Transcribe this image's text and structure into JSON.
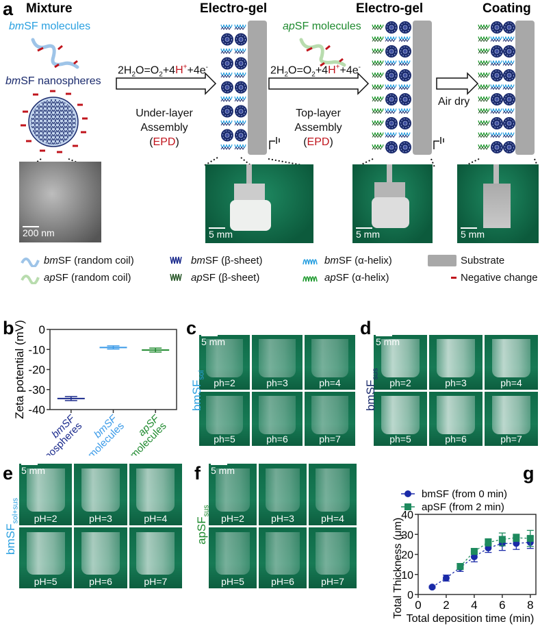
{
  "panel_a": {
    "label": "a",
    "mixture_title": "Mixture",
    "bm_molecules": "bmSF molecules",
    "bm_nanospheres": "bmSF nanospheres",
    "sem_scale": "200 nm",
    "reaction_1": "2H2O=O2+4H++4e-",
    "step1_line1": "Under-layer",
    "step1_line2": "Assembly",
    "step1_epd": "EPD",
    "electrogel_title_1": "Electro-gel",
    "ap_molecules": "apSF molecules",
    "reaction_2": "2H2O=O2+4H++4e-",
    "step2_line1": "Top-layer",
    "step2_line2": "Assembly",
    "step2_epd": "EPD",
    "electrogel_title_2": "Electro-gel",
    "step3": "Air dry",
    "coating_title": "Coating",
    "photo_scale": "5 mm",
    "colors": {
      "bm_light": "#2aa0e0",
      "bm_dark": "#1a2a6c",
      "ap": "#1e8a2e",
      "negative": "#c0141c",
      "substrate": "#a8a8a8"
    }
  },
  "legend": [
    {
      "prefix": "bm",
      "text": "SF (random coil)",
      "icon": "bm-random-coil-icon"
    },
    {
      "prefix": "bm",
      "text": "SF (β-sheet)",
      "icon": "bm-beta-sheet-icon"
    },
    {
      "prefix": "bm",
      "text": "SF (α-helix)",
      "icon": "bm-alpha-helix-icon"
    },
    {
      "prefix": "",
      "text": "Substrate",
      "icon": "substrate-icon"
    },
    {
      "prefix": "ap",
      "text": "SF (random coil)",
      "icon": "ap-random-coil-icon"
    },
    {
      "prefix": "ap",
      "text": "SF (β-sheet)",
      "icon": "ap-beta-sheet-icon"
    },
    {
      "prefix": "ap",
      "text": "SF (α-helix)",
      "icon": "ap-alpha-helix-icon"
    },
    {
      "prefix": "",
      "text": "Negative change",
      "icon": "negative-charge-icon"
    }
  ],
  "panel_c": {
    "label": "c",
    "side_label": "bmSF",
    "side_sub": "sol",
    "scale": "5 mm",
    "tiles": [
      "ph=2",
      "ph=3",
      "ph=4",
      "ph=5",
      "ph=6",
      "ph=7"
    ]
  },
  "panel_d": {
    "label": "d",
    "side_label": "bmSF",
    "side_sub": "sus",
    "scale": "5 mm",
    "tiles": [
      "ph=2",
      "ph=3",
      "ph=4",
      "ph=5",
      "ph=6",
      "ph=7"
    ]
  },
  "panel_e": {
    "label": "e",
    "side_label": "bmSF",
    "side_sub": "sol+sus",
    "scale": "5 mm",
    "tiles": [
      "pH=2",
      "pH=3",
      "pH=4",
      "pH=5",
      "pH=6",
      "pH=7"
    ]
  },
  "panel_f": {
    "label": "f",
    "side_label": "apSF",
    "side_sub": "sus",
    "scale": "5 mm",
    "tiles": [
      "pH=2",
      "pH=3",
      "pH=4",
      "pH=5",
      "pH=6",
      "pH=7"
    ]
  },
  "chart_data": [
    {
      "panel": "b",
      "type": "scatter",
      "ylabel": "Zeta potential (mV)",
      "categories": [
        "bmSF nanospheres",
        "bmSF molecules",
        "apSF molecules"
      ],
      "category_lines": [
        [
          "bmSF",
          "nanospheres"
        ],
        [
          "bmSF",
          "molecules"
        ],
        [
          "apSF",
          "molecules"
        ]
      ],
      "values": [
        -34.5,
        -9.0,
        -10.3
      ],
      "errors": [
        1.0,
        0.8,
        1.0
      ],
      "colors": [
        "#1a2a8c",
        "#3a9ae8",
        "#1e8a2e"
      ],
      "ylim": [
        -40,
        0
      ],
      "yticks": [
        0,
        -10,
        -20,
        -30,
        -40
      ]
    },
    {
      "panel": "g",
      "type": "line",
      "xlabel": "Total deposition time (min)",
      "ylabel": "Total Thickness (μm)",
      "xlim": [
        0,
        8.4
      ],
      "ylim": [
        0,
        40
      ],
      "xticks": [
        0,
        2,
        4,
        6,
        8
      ],
      "yticks": [
        0,
        10,
        20,
        30,
        40
      ],
      "legend_position": "top",
      "series": [
        {
          "name": "bmSF (from 0 min)",
          "marker": "circle",
          "color": "#1a2aa8",
          "x": [
            1,
            2,
            3,
            4,
            5,
            6,
            7,
            8
          ],
          "y": [
            3.7,
            8.2,
            13.5,
            18.8,
            23.2,
            25.5,
            25.5,
            26.0
          ],
          "err": [
            0.5,
            1.5,
            2.0,
            2.5,
            2.2,
            3.5,
            3.0,
            3.0
          ]
        },
        {
          "name": "apSF (from 2 min)",
          "marker": "square",
          "color": "#1e8a5e",
          "x": [
            3,
            4,
            5,
            6,
            7,
            8
          ],
          "y": [
            14.0,
            21.5,
            26.0,
            27.5,
            28.3,
            28.0
          ],
          "err": [
            1.5,
            1.5,
            1.8,
            3.2,
            1.8,
            4.0
          ]
        }
      ]
    }
  ]
}
